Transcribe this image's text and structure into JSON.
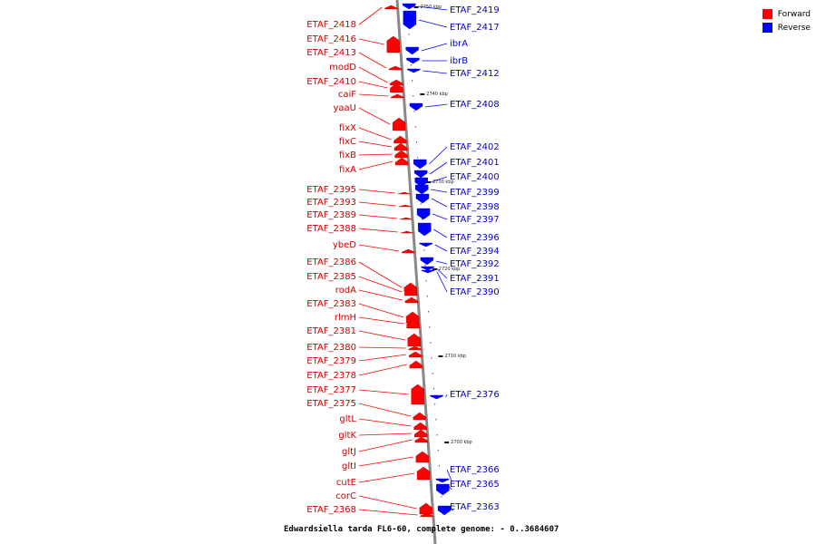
{
  "caption": "Edwardsiella tarda FL6-60, complete genome: - 0..3684607",
  "legend": {
    "items": [
      {
        "label": "Forward",
        "color": "#ff0000"
      },
      {
        "label": "Reverse",
        "color": "#0000ff"
      }
    ]
  },
  "colors": {
    "forward": "#ff0000",
    "reverse": "#0000ff",
    "forward_label": "#cc0000",
    "reverse_label": "#0000cc",
    "backbone": "#888888"
  },
  "ruler": [
    {
      "label": "2750 kbp"
    },
    {
      "label": "2740 kbp"
    },
    {
      "label": "2730 kbp"
    },
    {
      "label": "2720 kbp"
    },
    {
      "label": "2710 kbp"
    },
    {
      "label": "2700 kbp"
    }
  ],
  "forward_genes": [
    "ETAF_2418",
    "ETAF_2416",
    "ETAF_2413",
    "modD",
    "ETAF_2410",
    "caiF",
    "yaaU",
    "fixX",
    "fixC",
    "fixB",
    "fixA",
    "ETAF_2395",
    "ETAF_2393",
    "ETAF_2389",
    "ETAF_2388",
    "ybeD",
    "ETAF_2386",
    "ETAF_2385",
    "rodA",
    "ETAF_2383",
    "rlmH",
    "ETAF_2381",
    "ETAF_2380",
    "ETAF_2379",
    "ETAF_2378",
    "ETAF_2377",
    "ETAF_2375",
    "gltL",
    "gltK",
    "gltJ",
    "gltI",
    "cutE",
    "corC",
    "ETAF_2368"
  ],
  "reverse_genes": [
    "ETAF_2419",
    "ETAF_2417",
    "ibrA",
    "ibrB",
    "ETAF_2412",
    "ETAF_2408",
    "ETAF_2402",
    "ETAF_2401",
    "ETAF_2400",
    "ETAF_2399",
    "ETAF_2398",
    "ETAF_2397",
    "ETAF_2396",
    "ETAF_2394",
    "ETAF_2392",
    "ETAF_2391",
    "ETAF_2390",
    "ETAF_2376",
    "ETAF_2366",
    "ETAF_2365",
    "ETAF_2363"
  ]
}
